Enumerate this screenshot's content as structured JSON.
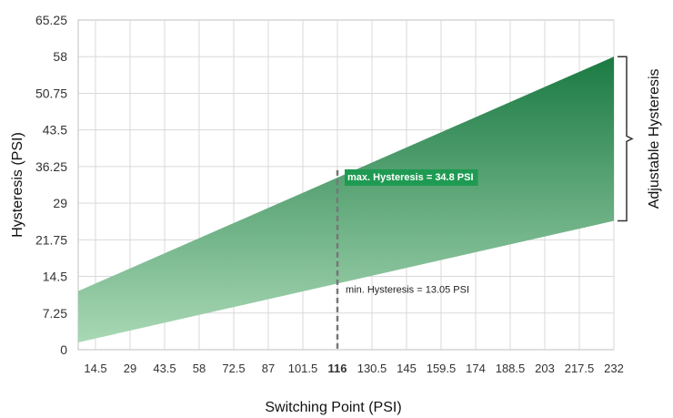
{
  "chart_data": {
    "type": "area",
    "xlabel": "Switching Point (PSI)",
    "ylabel": "Hysteresis (PSI)",
    "x_ticks": [
      "14.5",
      "29",
      "43.5",
      "58",
      "72.5",
      "87",
      "101.5",
      "116",
      "130.5",
      "145",
      "159.5",
      "174",
      "188.5",
      "203",
      "217.5",
      "232"
    ],
    "y_ticks": [
      "0",
      "7.25",
      "14.5",
      "21.75",
      "29",
      "36.25",
      "43.5",
      "50.75",
      "58",
      "65.25"
    ],
    "xlim": [
      7.25,
      232
    ],
    "ylim": [
      0,
      65.25
    ],
    "highlight_tick": "116",
    "grid": true,
    "series": [
      {
        "role": "upper",
        "x": [
          7.25,
          232
        ],
        "values": [
          11.6,
          58
        ]
      },
      {
        "role": "lower",
        "x": [
          7.25,
          232
        ],
        "values": [
          1.45,
          25.5
        ]
      }
    ],
    "marker": {
      "x": 116,
      "min": 13.05,
      "max": 34.8
    },
    "annotations": {
      "max_label": "max. Hysteresis = 34.8 PSI",
      "min_label": "min. Hysteresis = 13.05 PSI",
      "bracket_label": "Adjustable Hysteresis"
    },
    "colors": {
      "fill_top": "#1a7a42",
      "fill_bottom": "#a9d8b5",
      "highlight": "#d9302c",
      "label_bg": "#1f9a52",
      "grid": "#d9d9d9"
    }
  }
}
